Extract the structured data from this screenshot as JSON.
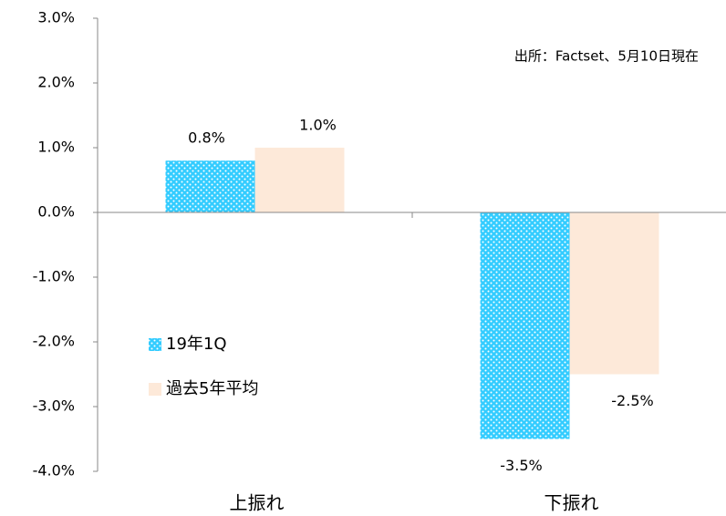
{
  "chart_data": {
    "type": "bar",
    "annotation": "出所：Factset、5月10日現在",
    "categories": [
      "上振れ",
      "下振れ"
    ],
    "series": [
      {
        "name": "19年1Q",
        "color": "#33ccff",
        "values": [
          0.8,
          -3.5
        ],
        "value_labels": [
          "0.8%",
          "-3.5%"
        ]
      },
      {
        "name": "過去5年平均",
        "color": "#fde9d9",
        "values": [
          1.0,
          -2.5
        ],
        "value_labels": [
          "1.0%",
          "-2.5%"
        ]
      }
    ],
    "ylim": [
      -4,
      3
    ],
    "yticks": [
      {
        "value": -4,
        "label": "-4.0%"
      },
      {
        "value": -3,
        "label": "-3.0%"
      },
      {
        "value": -2,
        "label": "-2.0%"
      },
      {
        "value": -1,
        "label": "-1.0%"
      },
      {
        "value": 0,
        "label": "0.0%"
      },
      {
        "value": 1,
        "label": "1.0%"
      },
      {
        "value": 2,
        "label": "2.0%"
      },
      {
        "value": 3,
        "label": "3.0%"
      }
    ],
    "legend": "left"
  }
}
